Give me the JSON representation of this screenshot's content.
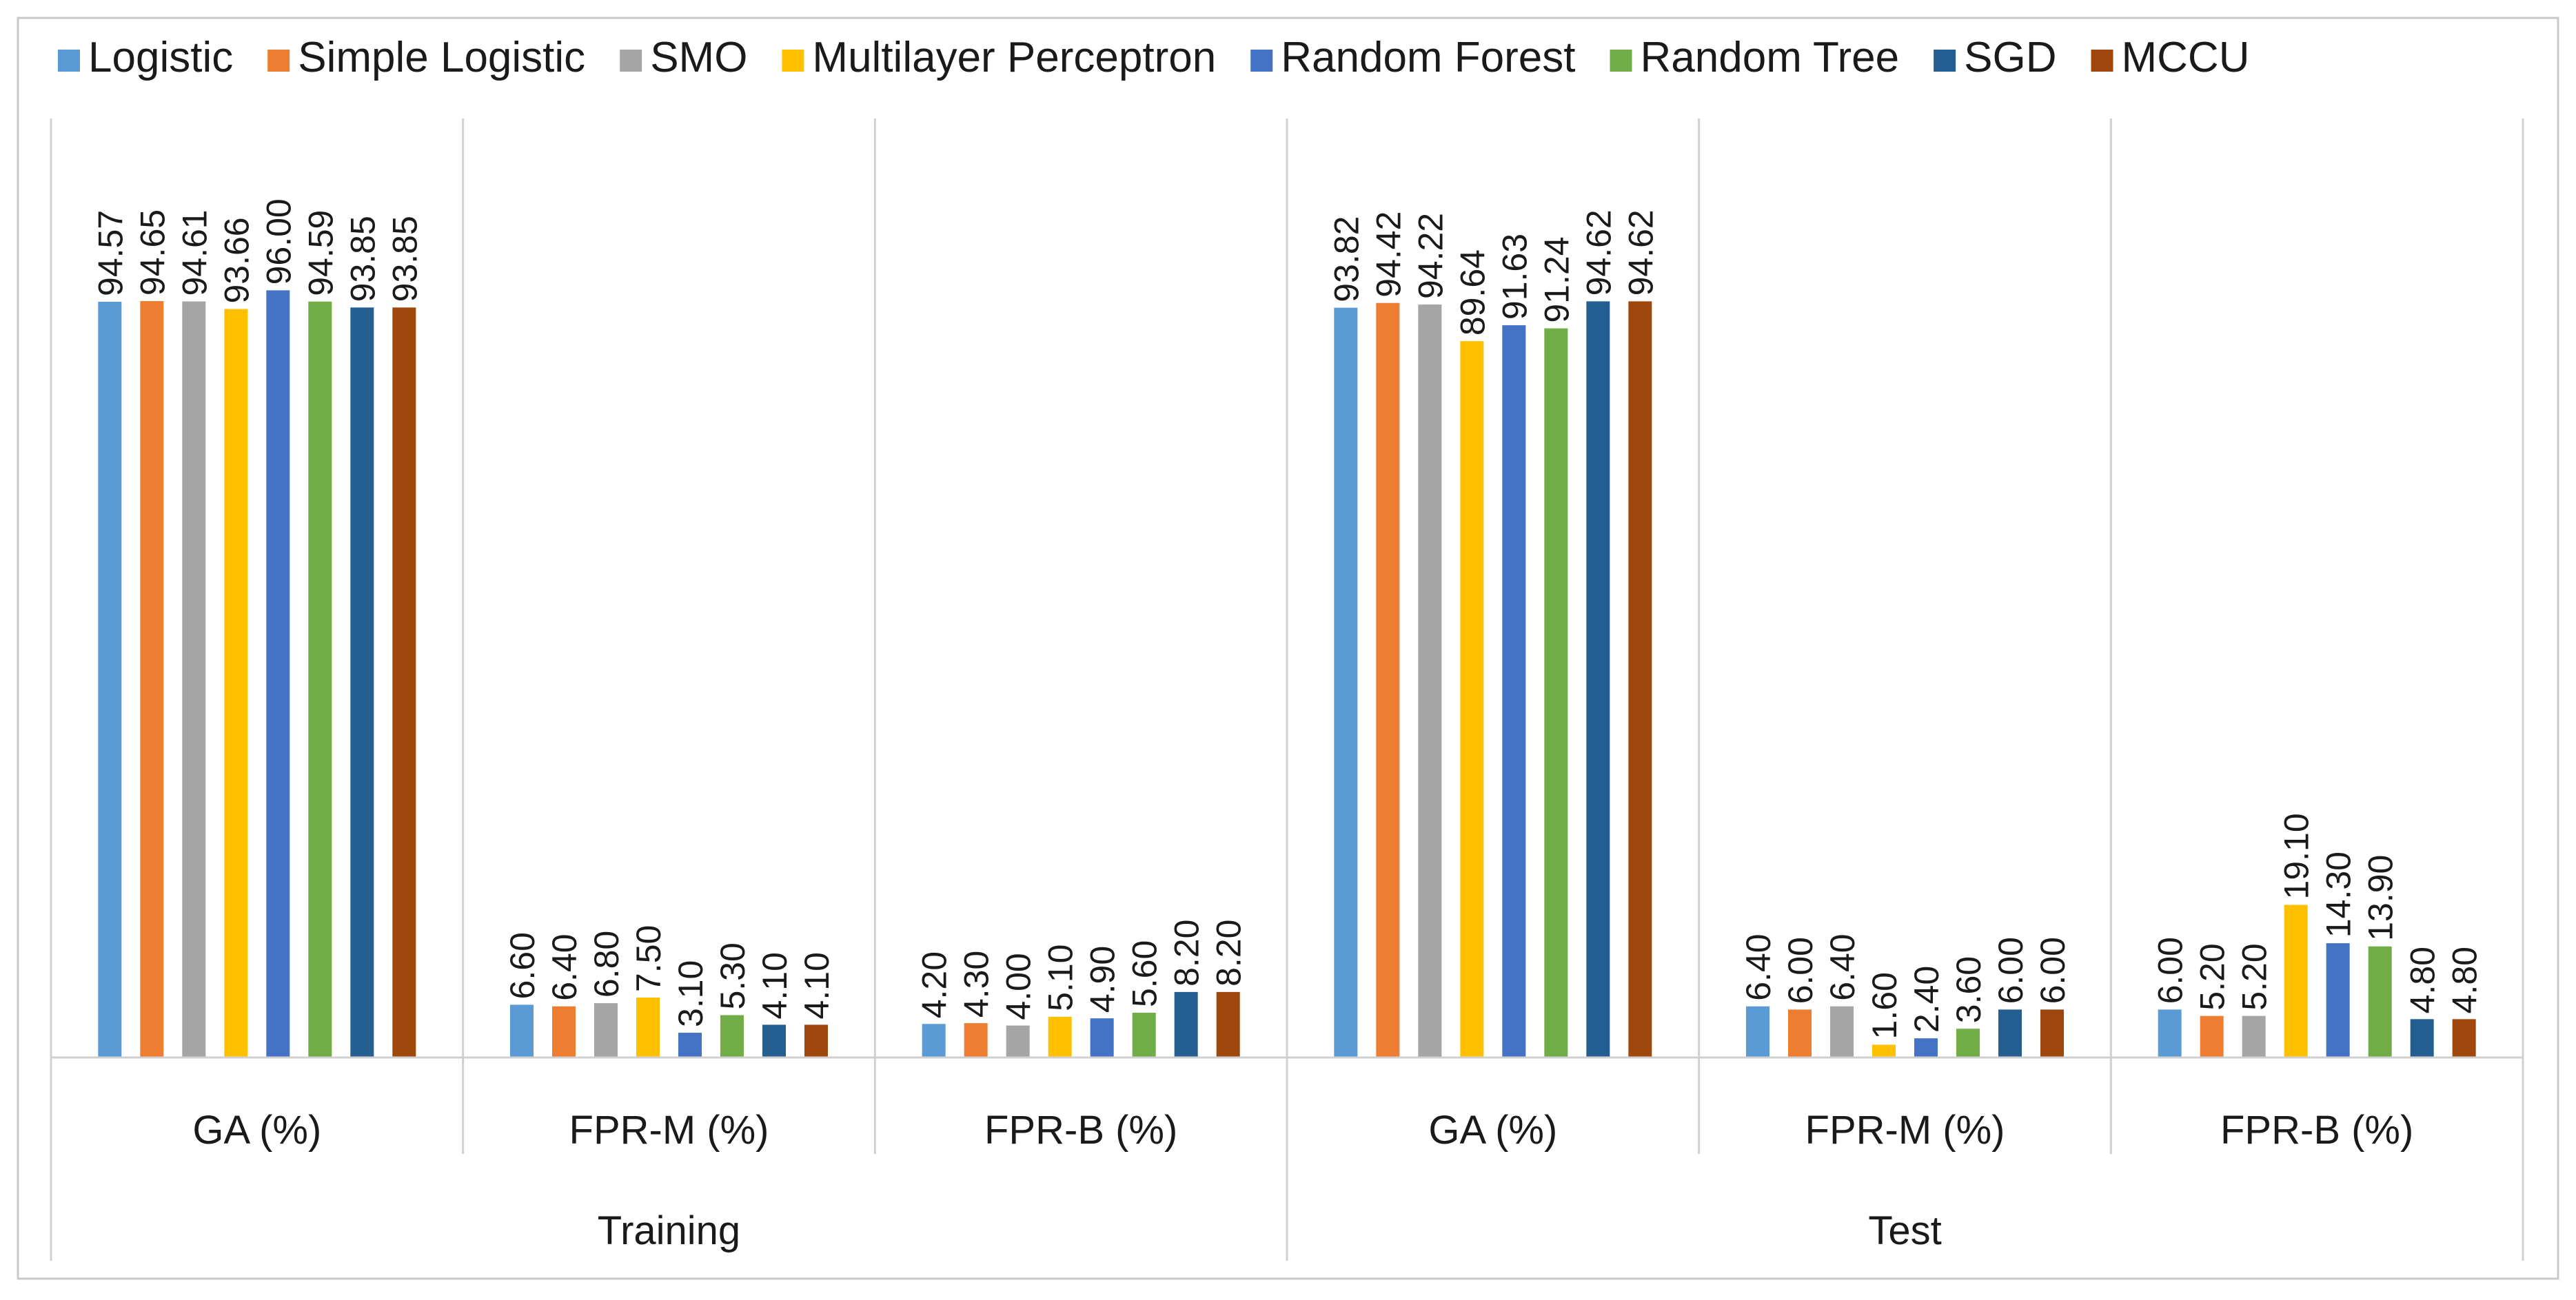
{
  "chart_data": {
    "type": "bar",
    "title": "",
    "xlabel": "",
    "ylabel": "",
    "ylim": [
      0,
      100
    ],
    "grid": false,
    "legend_position": "top",
    "groups": [
      "Training",
      "Test"
    ],
    "categories": [
      "GA (%)",
      "FPR-M (%)",
      "FPR-B (%)",
      "GA (%)",
      "FPR-M (%)",
      "FPR-B (%)"
    ],
    "value_format": "fixed-2",
    "series": [
      {
        "name": "Logistic",
        "color": "#5b9bd5",
        "values": [
          94.57,
          6.6,
          4.2,
          93.82,
          6.4,
          6.0
        ]
      },
      {
        "name": "Simple Logistic",
        "color": "#ed7d31",
        "values": [
          94.65,
          6.4,
          4.3,
          94.42,
          6.0,
          5.2
        ]
      },
      {
        "name": "SMO",
        "color": "#a5a5a5",
        "values": [
          94.61,
          6.8,
          4.0,
          94.22,
          6.4,
          5.2
        ]
      },
      {
        "name": "Multilayer Perceptron",
        "color": "#ffc000",
        "values": [
          93.66,
          7.5,
          5.1,
          89.64,
          1.6,
          19.1
        ]
      },
      {
        "name": "Random Forest",
        "color": "#4472c4",
        "values": [
          96.0,
          3.1,
          4.9,
          91.63,
          2.4,
          14.3
        ]
      },
      {
        "name": "Random Tree",
        "color": "#70ad47",
        "values": [
          94.59,
          5.3,
          5.6,
          91.24,
          3.6,
          13.9
        ]
      },
      {
        "name": "SGD",
        "color": "#255e91",
        "values": [
          93.85,
          4.1,
          8.2,
          94.62,
          6.0,
          4.8
        ]
      },
      {
        "name": "MCCU",
        "color": "#9e480e",
        "values": [
          93.85,
          4.1,
          8.2,
          94.62,
          6.0,
          4.8
        ]
      }
    ]
  },
  "colors": {
    "axis": "#d0d0d0",
    "frame": "#c8c8c8"
  }
}
